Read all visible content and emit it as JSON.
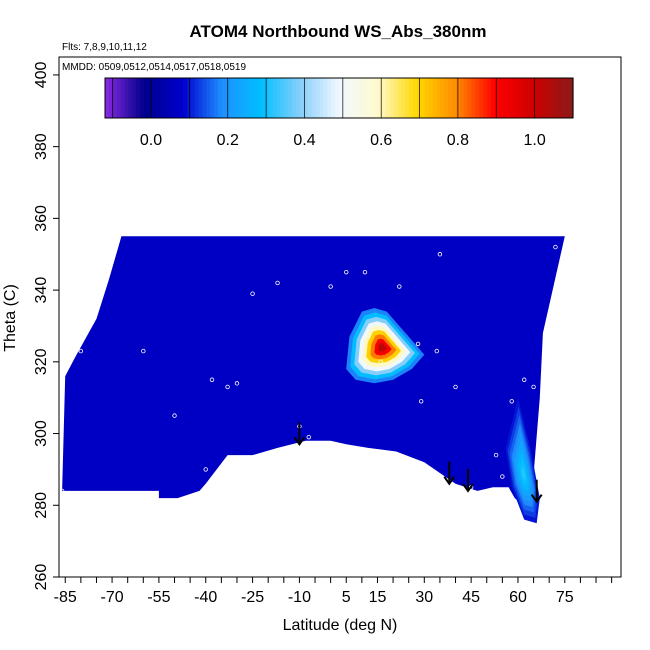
{
  "chart_data": {
    "type": "heatmap",
    "title": "ATOM4 Northbound WS_Abs_380nm",
    "annotations": {
      "flights": "Flts: 7,8,9,10,11,12",
      "dates": "MMDD: 0509,0512,0514,0517,0518,0519"
    },
    "xlabel": "Latitude (deg N)",
    "ylabel": "Theta (C)",
    "xlim": [
      -87,
      93
    ],
    "ylim": [
      260,
      405
    ],
    "xticks": [
      -85,
      -70,
      -55,
      -40,
      -25,
      -10,
      5,
      15,
      30,
      45,
      60,
      75
    ],
    "yticks": [
      260,
      280,
      300,
      320,
      340,
      360,
      380,
      400
    ],
    "colorbar": {
      "range": [
        -0.12,
        1.1
      ],
      "ticks": [
        0.0,
        0.2,
        0.4,
        0.6,
        0.8,
        1.0
      ],
      "tick_labels": [
        "0.0",
        "0.2",
        "0.4",
        "0.6",
        "0.8",
        "1.0"
      ],
      "colors": [
        "#8a2be2",
        "#00008b",
        "#0000cd",
        "#1e90ff",
        "#00bfff",
        "#87cefa",
        "#f0f8ff",
        "#fffacd",
        "#ffd700",
        "#ff8c00",
        "#ff0000",
        "#cd0000",
        "#8b1a1a"
      ]
    },
    "field": {
      "background_value": 0.07,
      "domain_outline": [
        [
          -86,
          284
        ],
        [
          -85,
          316
        ],
        [
          -82,
          321
        ],
        [
          -75,
          332
        ],
        [
          -71,
          343
        ],
        [
          -68,
          352
        ],
        [
          -67,
          355
        ],
        [
          75,
          355
        ],
        [
          68,
          328
        ],
        [
          67,
          310
        ],
        [
          64,
          278
        ],
        [
          59,
          282
        ],
        [
          57,
          285
        ],
        [
          52,
          285
        ],
        [
          47,
          284
        ],
        [
          40,
          286
        ],
        [
          30,
          292
        ],
        [
          21,
          295
        ],
        [
          12,
          296
        ],
        [
          5,
          297
        ],
        [
          0,
          298
        ],
        [
          -8,
          298
        ],
        [
          -17,
          296
        ],
        [
          -25,
          294
        ],
        [
          -33,
          294
        ],
        [
          -40,
          286
        ],
        [
          -42,
          284
        ],
        [
          -49,
          282
        ],
        [
          -55,
          282
        ],
        [
          -55,
          284
        ]
      ],
      "features": [
        {
          "name": "aerosol-plume",
          "peak": 1.02,
          "polygon": [
            [
              6,
              327
            ],
            [
              10,
              334
            ],
            [
              14,
              335
            ],
            [
              18,
              334
            ],
            [
              22,
              330
            ],
            [
              26,
              326
            ],
            [
              30,
              322
            ],
            [
              26,
              318
            ],
            [
              20,
              315
            ],
            [
              14,
              314
            ],
            [
              8,
              315
            ],
            [
              5,
              318
            ]
          ]
        },
        {
          "name": "high-latitude-enhancement",
          "peak": 0.32,
          "polygon": [
            [
              60,
              310
            ],
            [
              64,
              296
            ],
            [
              67,
              282
            ],
            [
              66,
              275
            ],
            [
              62,
              276
            ],
            [
              58,
              285
            ],
            [
              56,
              296
            ]
          ]
        }
      ]
    },
    "sample_points": [
      [
        -86,
        284
      ],
      [
        -80,
        323
      ],
      [
        -60,
        323
      ],
      [
        -50,
        305
      ],
      [
        -40,
        290
      ],
      [
        -38,
        315
      ],
      [
        -33,
        313
      ],
      [
        -30,
        314
      ],
      [
        -25,
        339
      ],
      [
        -17,
        342
      ],
      [
        -10,
        302
      ],
      [
        -7,
        299
      ],
      [
        0,
        341
      ],
      [
        5,
        345
      ],
      [
        11,
        345
      ],
      [
        16,
        320
      ],
      [
        22,
        341
      ],
      [
        28,
        325
      ],
      [
        29,
        309
      ],
      [
        34,
        323
      ],
      [
        35,
        350
      ],
      [
        40,
        313
      ],
      [
        45,
        285
      ],
      [
        53,
        294
      ],
      [
        55,
        288
      ],
      [
        58,
        309
      ],
      [
        62,
        315
      ],
      [
        65,
        313
      ],
      [
        70,
        333
      ],
      [
        72,
        352
      ]
    ],
    "flight_markers": [
      {
        "lat": -10,
        "theta": 297
      },
      {
        "lat": 38,
        "theta": 286
      },
      {
        "lat": 44,
        "theta": 284
      },
      {
        "lat": 66,
        "theta": 281
      }
    ]
  }
}
